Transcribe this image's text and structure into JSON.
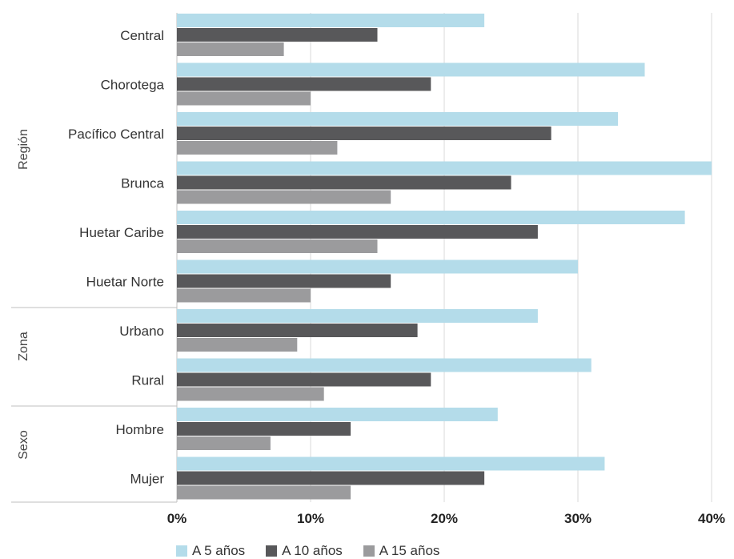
{
  "chart_data": {
    "type": "bar",
    "orientation": "horizontal",
    "categories": [
      "Central",
      "Chorotega",
      "Pacífico Central",
      "Brunca",
      "Huetar Caribe",
      "Huetar Norte",
      "Urbano",
      "Rural",
      "Hombre",
      "Mujer"
    ],
    "groups": [
      {
        "label": "Región",
        "categories": [
          "Central",
          "Chorotega",
          "Pacífico Central",
          "Brunca",
          "Huetar Caribe",
          "Huetar Norte"
        ]
      },
      {
        "label": "Zona",
        "categories": [
          "Urbano",
          "Rural"
        ]
      },
      {
        "label": "Sexo",
        "categories": [
          "Hombre",
          "Mujer"
        ]
      }
    ],
    "series": [
      {
        "name": "A 5 años",
        "color": "#b4dcea",
        "values": [
          23,
          35,
          33,
          40,
          38,
          30,
          27,
          31,
          24,
          32
        ]
      },
      {
        "name": "A 10 años",
        "color": "#58585a",
        "values": [
          15,
          19,
          28,
          25,
          27,
          16,
          18,
          19,
          13,
          23
        ]
      },
      {
        "name": "A 15 años",
        "color": "#9b9b9d",
        "values": [
          8,
          10,
          12,
          16,
          15,
          10,
          9,
          11,
          7,
          13
        ]
      }
    ],
    "xlim": [
      0,
      40
    ],
    "xticks": [
      "0%",
      "10%",
      "20%",
      "30%",
      "40%"
    ],
    "grid": true,
    "legend_position": "bottom"
  }
}
